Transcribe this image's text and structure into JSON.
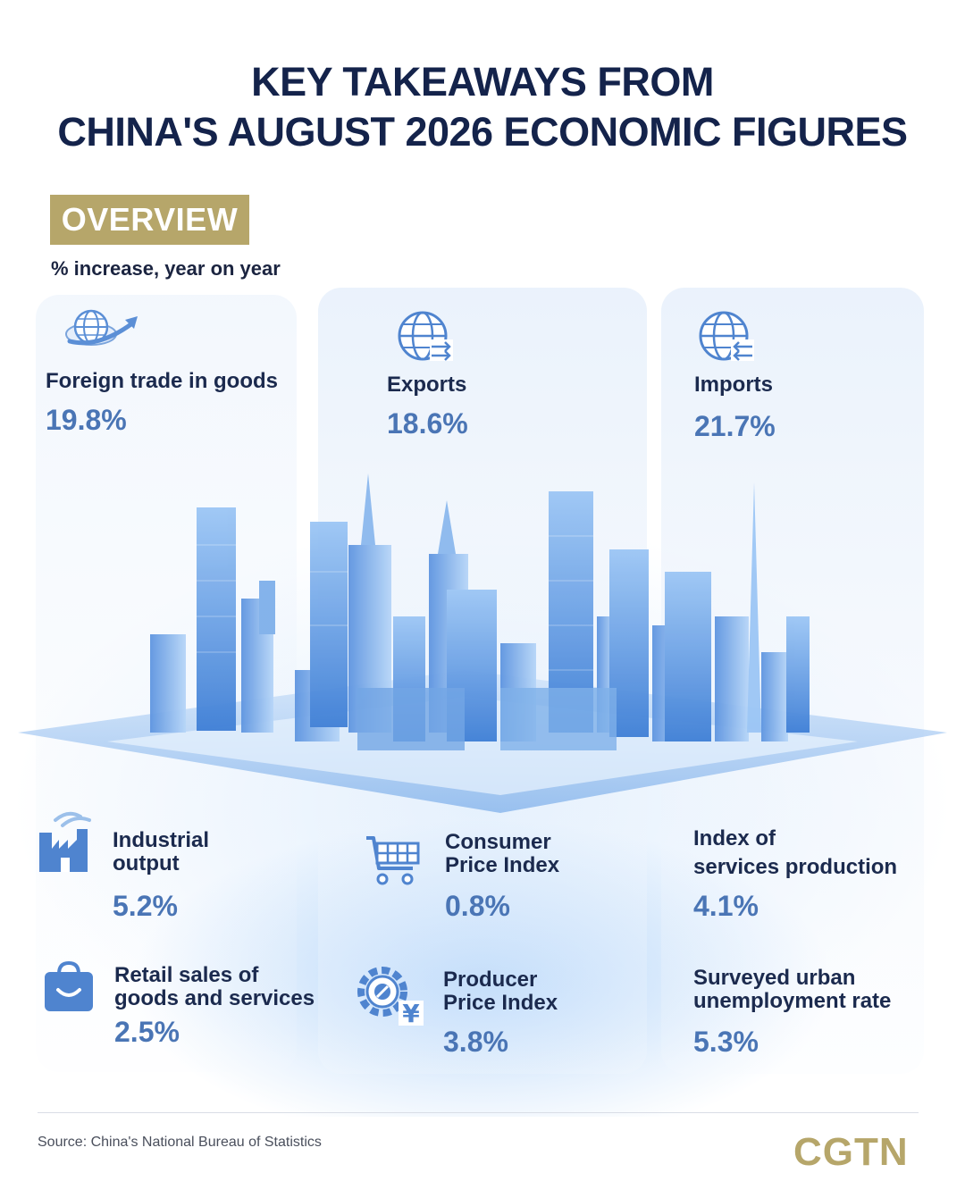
{
  "title": {
    "line1": "KEY TAKEAWAYS FROM",
    "line2": "CHINA'S AUGUST 2026 ECONOMIC FIGURES"
  },
  "section": {
    "tag": "OVERVIEW",
    "subtitle": "% increase, year on year"
  },
  "stats": {
    "foreign_trade": {
      "label": "Foreign trade in goods",
      "value": "19.8%",
      "icon": "globe-arrow-icon"
    },
    "exports": {
      "label": "Exports",
      "value": "18.6%",
      "icon": "globe-export-icon"
    },
    "imports": {
      "label": "Imports",
      "value": "21.7%",
      "icon": "globe-import-icon"
    },
    "industrial": {
      "label_line1": "Industrial",
      "label_line2": "output",
      "value": "5.2%",
      "icon": "factory-icon"
    },
    "cpi": {
      "label_line1": "Consumer",
      "label_line2": "Price Index",
      "value": "0.8%",
      "icon": "shopping-cart-icon"
    },
    "services": {
      "label_line1": "Index of",
      "label_line2": "services production",
      "value": "4.1%"
    },
    "retail": {
      "label_line1": "Retail sales of",
      "label_line2": "goods and services",
      "value": "2.5%",
      "icon": "shopping-bag-icon"
    },
    "ppi": {
      "label_line1": "Producer",
      "label_line2": "Price Index",
      "value": "3.8%",
      "icon": "gear-yuan-icon"
    },
    "unemployment": {
      "label_line1": "Surveyed urban",
      "label_line2": "unemployment rate",
      "value": "5.3%"
    }
  },
  "footer": {
    "source": "Source: China's National Bureau of Statistics",
    "logo": "CGTN"
  },
  "colors": {
    "title": "#14234b",
    "accent_gold": "#b6a66a",
    "value_blue": "#4a75b5",
    "icon_blue": "#5b8fd6"
  }
}
